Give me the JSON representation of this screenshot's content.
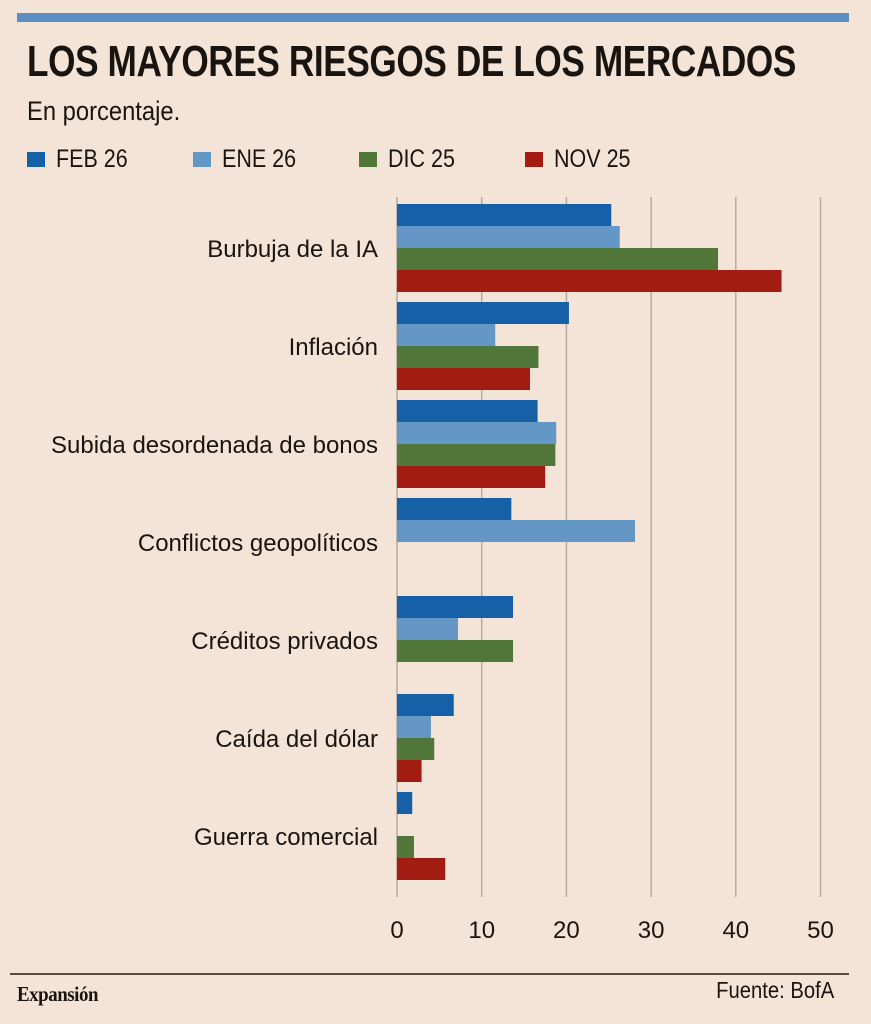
{
  "header": {
    "title": "LOS MAYORES RIESGOS DE LOS MERCADOS",
    "subtitle": "En porcentaje."
  },
  "footer": {
    "brand": "Expansión",
    "source": "Fuente: BofA"
  },
  "colors": {
    "background": "#f4e4d8",
    "top_rule": "#5b8fc4",
    "FEB 26": "#1560a6",
    "ENE 26": "#6496c6",
    "DIC 25": "#50763a",
    "NOV 25": "#a31c12",
    "grid": "#b8aaa0"
  },
  "chart_data": {
    "type": "bar",
    "orientation": "horizontal",
    "title": "LOS MAYORES RIESGOS DE LOS MERCADOS",
    "subtitle": "En porcentaje.",
    "xlabel": "",
    "ylabel": "",
    "xlim": [
      0,
      50
    ],
    "xticks": [
      0,
      10,
      20,
      30,
      40,
      50
    ],
    "grid": true,
    "legend_position": "top-left",
    "categories": [
      "Burbuja de la IA",
      "Inflación",
      "Subida desordenada de bonos",
      "Conflictos geopolíticos",
      "Créditos privados",
      "Caída del dólar",
      "Guerra comercial"
    ],
    "series": [
      {
        "name": "FEB 26",
        "color": "#1560a6",
        "values": [
          25.3,
          20.3,
          16.6,
          13.5,
          13.7,
          6.7,
          1.8
        ]
      },
      {
        "name": "ENE 26",
        "color": "#6496c6",
        "values": [
          26.3,
          11.6,
          18.8,
          28.1,
          7.2,
          4.0,
          null
        ]
      },
      {
        "name": "DIC 25",
        "color": "#50763a",
        "values": [
          37.9,
          16.7,
          18.7,
          null,
          13.7,
          4.4,
          2.0
        ]
      },
      {
        "name": "NOV 25",
        "color": "#a31c12",
        "values": [
          45.4,
          15.7,
          17.5,
          null,
          null,
          2.9,
          5.7
        ]
      }
    ],
    "source": "Fuente: BofA"
  }
}
